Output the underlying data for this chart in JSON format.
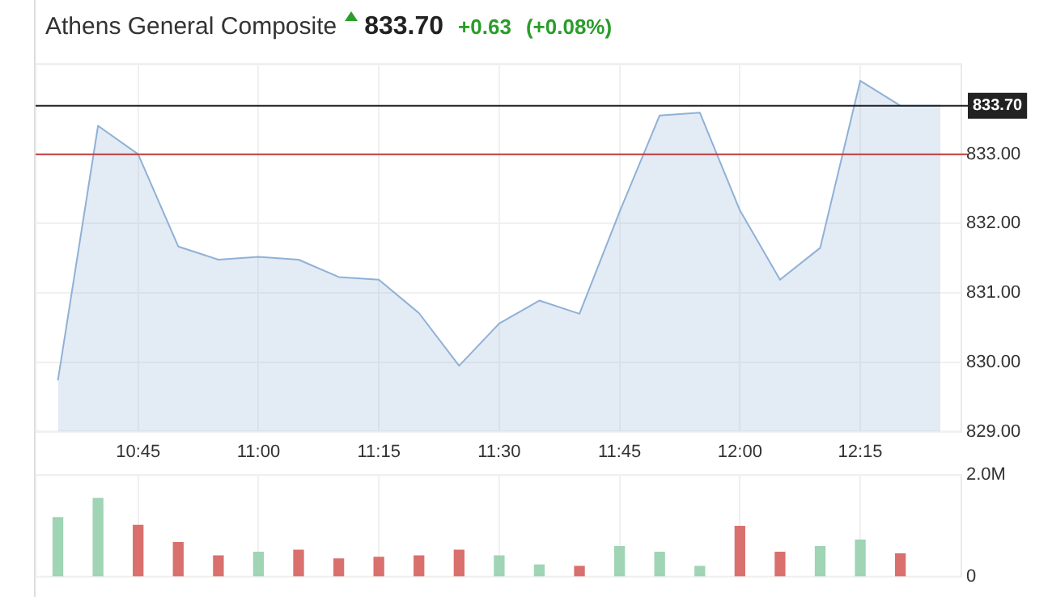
{
  "chart_data": [
    {
      "type": "area",
      "title": "Athens General Composite",
      "annotations": [
        "833.70",
        "+0.63",
        "(+0.08%)"
      ],
      "x": [
        10.5833,
        10.6667,
        10.75,
        10.8333,
        10.9167,
        11.0,
        11.0833,
        11.1667,
        11.25,
        11.3333,
        11.4167,
        11.5,
        11.5833,
        11.6667,
        11.75,
        11.8333,
        11.9167,
        12.0,
        12.0833,
        12.1667,
        12.25,
        12.3333,
        12.4167
      ],
      "series": [
        {
          "color": "#8fb1d6",
          "values": [
            829.74,
            833.41,
            833.0,
            831.67,
            831.48,
            831.52,
            831.48,
            831.23,
            831.19,
            830.71,
            829.95,
            830.56,
            830.89,
            830.7,
            832.17,
            833.56,
            833.6,
            832.19,
            831.19,
            831.65,
            834.06,
            833.7,
            833.7
          ]
        }
      ],
      "xlim": [
        10.537,
        12.46
      ],
      "xticks": [
        {
          "value": 10.75,
          "label": "10:45"
        },
        {
          "value": 11.0,
          "label": "11:00"
        },
        {
          "value": 11.25,
          "label": "11:15"
        },
        {
          "value": 11.5,
          "label": "11:30"
        },
        {
          "value": 11.75,
          "label": "11:45"
        },
        {
          "value": 12.0,
          "label": "12:00"
        },
        {
          "value": 12.25,
          "label": "12:15"
        }
      ],
      "ylim": [
        829,
        834.3
      ],
      "yticks": [
        {
          "value": 829,
          "label": "829.00"
        },
        {
          "value": 830,
          "label": "830.00"
        },
        {
          "value": 831,
          "label": "831.00"
        },
        {
          "value": 832,
          "label": "832.00"
        },
        {
          "value": 833,
          "label": "833.00"
        }
      ],
      "ref_lines": [
        {
          "axis": "y",
          "value": 833.7,
          "label": "833.70",
          "color": "#222222"
        },
        {
          "axis": "y",
          "value": 833.0,
          "color": "#c0393b"
        }
      ],
      "grid": true,
      "legend": false,
      "marker": "none"
    },
    {
      "type": "bar",
      "x": [
        10.5833,
        10.6667,
        10.75,
        10.8333,
        10.9167,
        11.0,
        11.0833,
        11.1667,
        11.25,
        11.3333,
        11.4167,
        11.5,
        11.5833,
        11.6667,
        11.75,
        11.8333,
        11.9167,
        12.0,
        12.0833,
        12.1667,
        12.25,
        12.3333
      ],
      "values": [
        1.16,
        1.54,
        1.01,
        0.67,
        0.41,
        0.48,
        0.52,
        0.35,
        0.38,
        0.41,
        0.52,
        0.41,
        0.23,
        0.2,
        0.59,
        0.48,
        0.2,
        0.99,
        0.48,
        0.59,
        0.72,
        0.45
      ],
      "colors": [
        "#9fd4b4",
        "#9fd4b4",
        "#d9706e",
        "#d9706e",
        "#d9706e",
        "#9fd4b4",
        "#d9706e",
        "#d9706e",
        "#d9706e",
        "#d9706e",
        "#d9706e",
        "#9fd4b4",
        "#9fd4b4",
        "#d9706e",
        "#9fd4b4",
        "#9fd4b4",
        "#9fd4b4",
        "#d9706e",
        "#d9706e",
        "#9fd4b4",
        "#9fd4b4",
        "#d9706e"
      ],
      "xlim": [
        10.537,
        12.46
      ],
      "xticks": [
        {
          "value": 10.75,
          "label": null
        },
        {
          "value": 11.0,
          "label": null
        },
        {
          "value": 11.25,
          "label": null
        },
        {
          "value": 11.5,
          "label": null
        },
        {
          "value": 11.75,
          "label": null
        },
        {
          "value": 12.0,
          "label": null
        },
        {
          "value": 12.25,
          "label": null
        }
      ],
      "ylim": [
        0,
        2
      ],
      "yticks": [
        {
          "value": 0,
          "label": "0"
        },
        {
          "value": 2,
          "label": "2.0M"
        }
      ],
      "tick_labels": "y",
      "grid": true,
      "legend": false
    }
  ]
}
